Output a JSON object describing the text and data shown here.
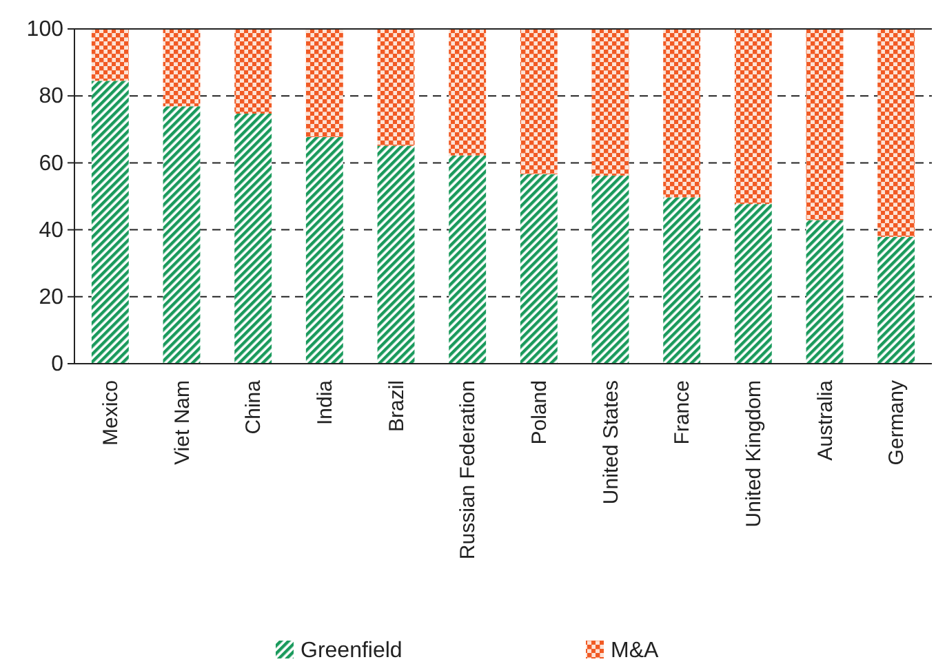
{
  "chart_data": {
    "type": "bar",
    "stacked": true,
    "categories": [
      "Mexico",
      "Viet Nam",
      "China",
      "India",
      "Brazil",
      "Russian Federation",
      "Poland",
      "United States",
      "France",
      "United Kingdom",
      "Australia",
      "Germany"
    ],
    "series": [
      {
        "name": "Greenfield",
        "color": "#1a9a5c",
        "values": [
          84.5,
          76.9,
          74.7,
          67.7,
          65.1,
          62.2,
          56.6,
          56.2,
          49.7,
          47.7,
          42.9,
          37.9
        ]
      },
      {
        "name": "M&A",
        "color": "#f15a24",
        "values": [
          15.5,
          23.1,
          25.3,
          32.3,
          34.9,
          37.8,
          43.4,
          43.8,
          50.3,
          52.3,
          57.1,
          62.1
        ]
      }
    ],
    "ylim": [
      0,
      100
    ],
    "yticks": [
      0,
      20,
      40,
      60,
      80,
      100
    ],
    "grid": "y",
    "legend": "bottom"
  }
}
